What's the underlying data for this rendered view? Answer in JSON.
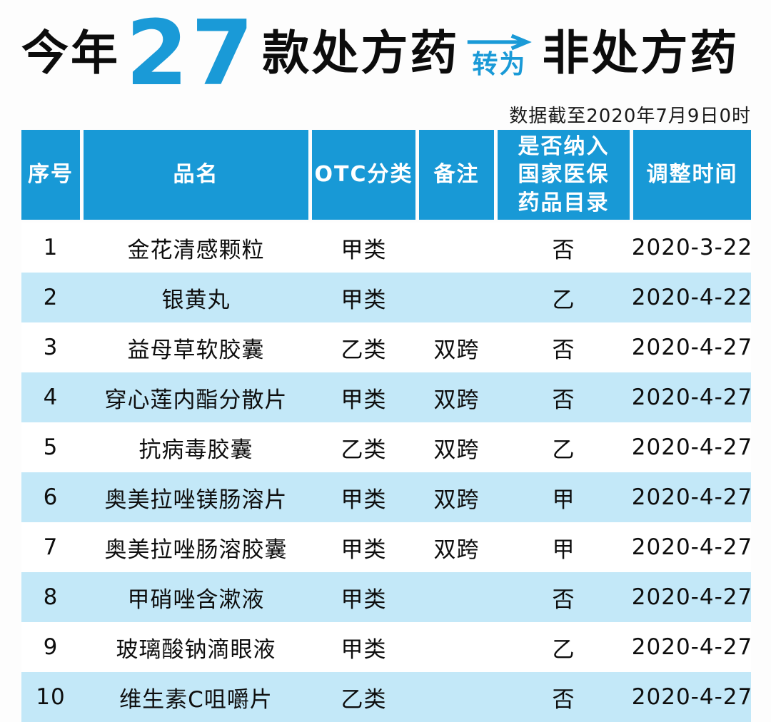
{
  "header": {
    "title_prefix": "今年",
    "title_count": "27",
    "title_mid": "款处方药",
    "title_arrow_label": "转为",
    "title_suffix": "非处方药",
    "subtitle": "数据截至2020年7月9日0时"
  },
  "colors": {
    "accent_blue": "#1A9AD7",
    "header_bg": "#1899D6",
    "row_alt_bg": "#C3E8F8",
    "header_text": "#FFFFFF",
    "text_dark": "#0E0E0E"
  },
  "icons": {
    "arrow": "right-arrow-icon"
  },
  "table": {
    "columns_display": [
      "序号",
      "品名",
      "OTC分类",
      "备注",
      "是否纳入\n国家医保\n药品目录",
      "调整时间"
    ],
    "column_keys": [
      "index",
      "name",
      "otc_class",
      "remark",
      "insurance_catalog",
      "adjust_date"
    ]
  },
  "chart_data": {
    "type": "table",
    "title": "今年27款处方药转为非处方药",
    "note": "数据截至2020年7月9日0时",
    "columns": [
      "序号",
      "品名",
      "OTC分类",
      "备注",
      "是否纳入国家医保药品目录",
      "调整时间"
    ],
    "rows": [
      [
        "1",
        "金花清感颗粒",
        "甲类",
        "",
        "否",
        "2020-3-22"
      ],
      [
        "2",
        "银黄丸",
        "甲类",
        "",
        "乙",
        "2020-4-22"
      ],
      [
        "3",
        "益母草软胶囊",
        "乙类",
        "双跨",
        "否",
        "2020-4-27"
      ],
      [
        "4",
        "穿心莲内酯分散片",
        "甲类",
        "双跨",
        "否",
        "2020-4-27"
      ],
      [
        "5",
        "抗病毒胶囊",
        "乙类",
        "双跨",
        "乙",
        "2020-4-27"
      ],
      [
        "6",
        "奥美拉唑镁肠溶片",
        "甲类",
        "双跨",
        "甲",
        "2020-4-27"
      ],
      [
        "7",
        "奥美拉唑肠溶胶囊",
        "甲类",
        "双跨",
        "甲",
        "2020-4-27"
      ],
      [
        "8",
        "甲硝唑含漱液",
        "甲类",
        "",
        "否",
        "2020-4-27"
      ],
      [
        "9",
        "玻璃酸钠滴眼液",
        "甲类",
        "",
        "乙",
        "2020-4-27"
      ],
      [
        "10",
        "维生素C咀嚼片",
        "乙类",
        "",
        "否",
        "2020-4-27"
      ]
    ]
  }
}
